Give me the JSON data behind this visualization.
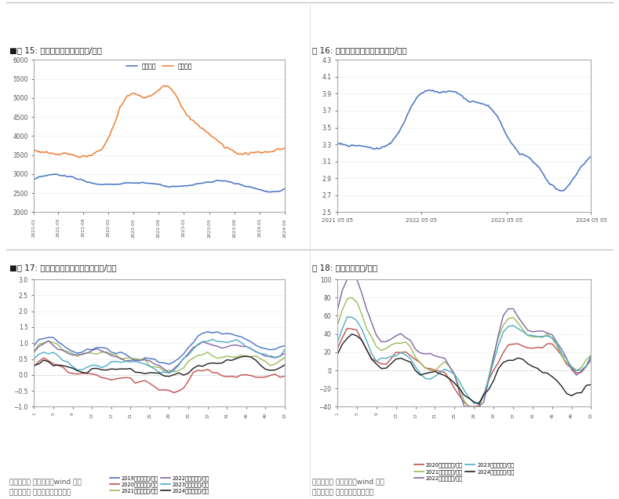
{
  "fig15_title": "图 15: 玉米豆粣价格走势（元/吨）",
  "fig15_title_prefix": "■图 15: ",
  "fig15_title_main": "玉米豆粣价格走势（元/吨）",
  "fig16_title": "图 16: 单斤鸡蛋对应饰料成本（元/斤）",
  "fig17_title": "■图 17: 鲜鸡蛋单斤平均盈利情况（元/斤）",
  "fig18_title": "图 18: 养殖利润（元/羽）",
  "source12": "数据来源： 银河期货，wind 资讯",
  "source34": "数据来源： 银河期货，卓创数据",
  "background_color": "#ffffff",
  "fig15": {
    "corn_color": "#4472C4",
    "soybean_color": "#ED7D31",
    "legend_corn": "玉米价格",
    "legend_soy": "豆粣价格",
    "ylim": [
      2000,
      6000
    ],
    "yticks": [
      2000,
      2500,
      3000,
      3500,
      4000,
      4500,
      5000,
      5500,
      6000
    ]
  },
  "fig16": {
    "line_color": "#4472C4",
    "ylim": [
      2.5,
      4.3
    ],
    "yticks": [
      2.5,
      2.7,
      2.9,
      3.1,
      3.3,
      3.5,
      3.7,
      3.9,
      4.1,
      4.3
    ]
  },
  "fig17": {
    "color_2019": "#4472C4",
    "color_2020": "#C0504D",
    "color_2021": "#9BBB59",
    "color_2022": "#8064A2",
    "color_2023": "#4BACC6",
    "color_2024": "#1F1F1F",
    "ylim": [
      -1,
      3
    ],
    "yticks": [
      -1,
      -0.5,
      0,
      0.5,
      1,
      1.5,
      2,
      2.5,
      3
    ],
    "label_2019": "2019年毛利（元/斤）",
    "label_2020": "2020年毛利（元/斤）",
    "label_2021": "2021年毛利（元/斤）",
    "label_2022": "2022年毛利（元/斤）",
    "label_2023": "2023年毛利（元/斤）",
    "label_2024": "2024年毛利（元/斤）"
  },
  "fig18": {
    "color_2020": "#C0504D",
    "color_2021": "#9BBB59",
    "color_2022": "#8064A2",
    "color_2023": "#4BACC6",
    "color_2024": "#1F1F1F",
    "ylim": [
      -40,
      100
    ],
    "yticks": [
      -40,
      -20,
      0,
      20,
      40,
      60,
      80,
      100
    ],
    "label_2020": "2020年毛利（元/羽）",
    "label_2021": "2021年毛利（元/羽）",
    "label_2022": "2022年毛利（元/羽）",
    "label_2023": "2023年毛利（元/羽）",
    "label_2024": "2024年毛利（元/羽）"
  }
}
